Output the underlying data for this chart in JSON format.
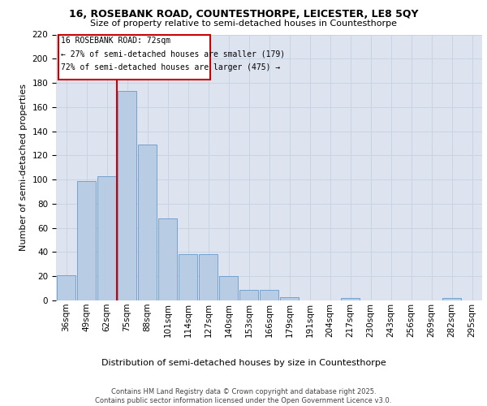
{
  "title1": "16, ROSEBANK ROAD, COUNTESTHORPE, LEICESTER, LE8 5QY",
  "title2": "Size of property relative to semi-detached houses in Countesthorpe",
  "xlabel": "Distribution of semi-detached houses by size in Countesthorpe",
  "ylabel": "Number of semi-detached properties",
  "categories": [
    "36sqm",
    "49sqm",
    "62sqm",
    "75sqm",
    "88sqm",
    "101sqm",
    "114sqm",
    "127sqm",
    "140sqm",
    "153sqm",
    "166sqm",
    "179sqm",
    "191sqm",
    "204sqm",
    "217sqm",
    "230sqm",
    "243sqm",
    "256sqm",
    "269sqm",
    "282sqm",
    "295sqm"
  ],
  "values": [
    21,
    99,
    103,
    173,
    129,
    68,
    38,
    38,
    20,
    9,
    9,
    3,
    0,
    0,
    2,
    0,
    0,
    0,
    0,
    2,
    0
  ],
  "bar_color": "#b8cce4",
  "bar_edge_color": "#6699cc",
  "grid_color": "#c8d4e4",
  "background_color": "#dde4f0",
  "vline_color": "#cc0000",
  "vline_x_index": 3,
  "ann_title": "16 ROSEBANK ROAD: 72sqm",
  "ann_line1": "← 27% of semi-detached houses are smaller (179)",
  "ann_line2": "72% of semi-detached houses are larger (475) →",
  "footer1": "Contains HM Land Registry data © Crown copyright and database right 2025.",
  "footer2": "Contains public sector information licensed under the Open Government Licence v3.0.",
  "ylim_max": 220,
  "yticks": [
    0,
    20,
    40,
    60,
    80,
    100,
    120,
    140,
    160,
    180,
    200,
    220
  ],
  "title1_fontsize": 9,
  "title2_fontsize": 8,
  "ylabel_fontsize": 8,
  "xlabel_fontsize": 8,
  "tick_fontsize": 7.5,
  "ann_fontsize": 7,
  "footer_fontsize": 6
}
